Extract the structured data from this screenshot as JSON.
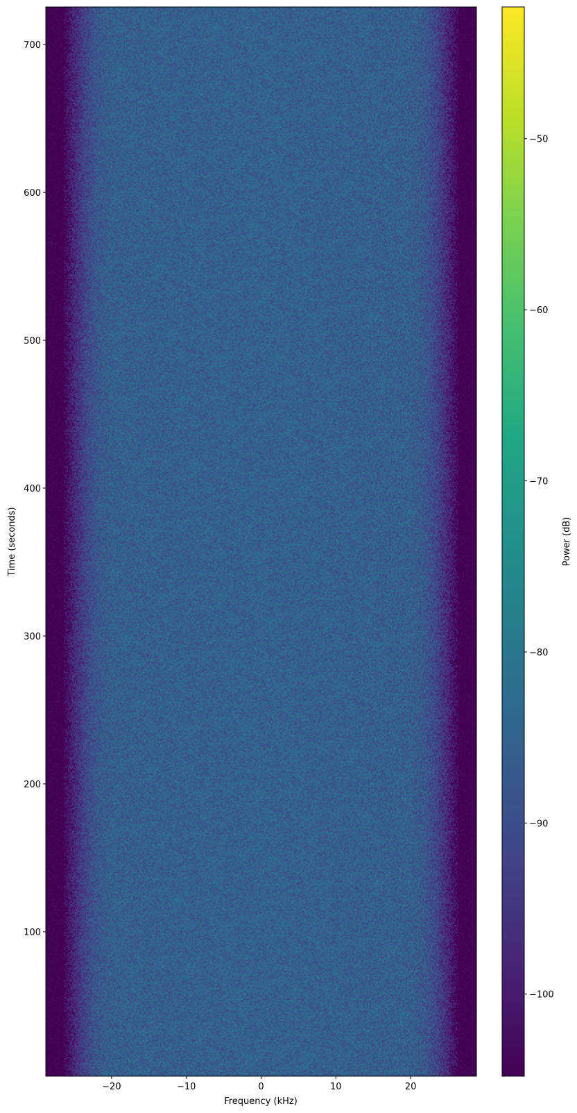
{
  "chart_data": {
    "type": "heatmap",
    "subtype": "spectrogram",
    "title": "",
    "xlabel": "Frequency (kHz)",
    "ylabel": "Time (seconds)",
    "xlim": [
      -28.8,
      28.8
    ],
    "ylim": [
      2.3,
      725.4
    ],
    "xticks": [
      -20,
      -10,
      0,
      10,
      20
    ],
    "xtick_labels": [
      "−20",
      "−10",
      "0",
      "10",
      "20"
    ],
    "yticks": [
      100,
      200,
      300,
      400,
      500,
      600,
      700
    ],
    "ytick_labels": [
      "100",
      "200",
      "300",
      "400",
      "500",
      "600",
      "700"
    ],
    "grid": false,
    "colormap": "viridis",
    "colorbar": {
      "label": "Power (dB)",
      "range": [
        -104.8,
        -42.3
      ],
      "ticks": [
        -100,
        -90,
        -80,
        -70,
        -60,
        -50
      ],
      "tick_labels": [
        "−100",
        "−90",
        "−80",
        "−70",
        "−60",
        "−50"
      ]
    },
    "mean_power_profile_db": {
      "frequency_khz": [
        -28.8,
        -26.5,
        -25,
        -23.5,
        -22,
        -20,
        0,
        20,
        22,
        23.5,
        25,
        26.5,
        28.8
      ],
      "power_db": [
        -104.8,
        -104.8,
        -98,
        -92,
        -88,
        -86,
        -85.5,
        -86,
        -88,
        -92,
        -98,
        -104.8,
        -104.8
      ]
    },
    "noise_std_db": 2.5,
    "time_variation": "none (stationary)"
  }
}
